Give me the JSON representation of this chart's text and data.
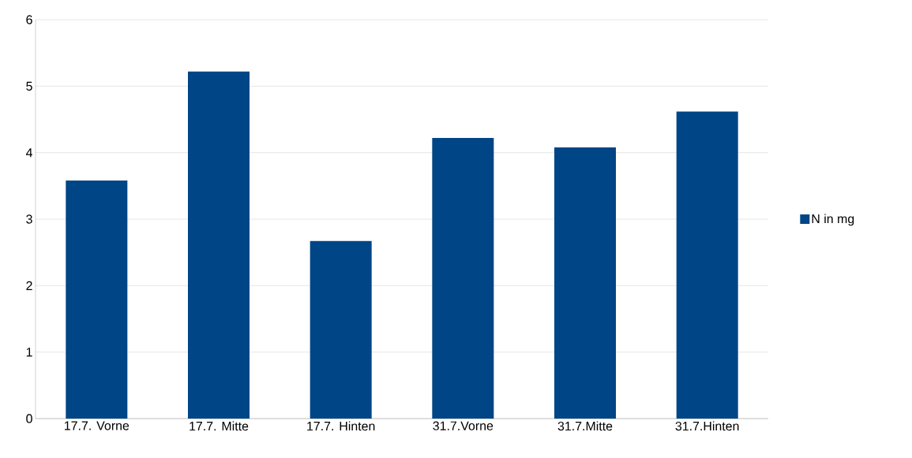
{
  "chart_data": {
    "type": "bar",
    "categories": [
      "17.7. Vorne",
      "17.7. Mitte",
      "17.7. Hinten",
      "31.7.Vorne",
      "31.7.Mitte",
      "31.7.Hinten"
    ],
    "series": [
      {
        "name": "N in mg",
        "color": "#004586",
        "values": [
          3.58,
          5.22,
          2.67,
          4.22,
          4.08,
          4.62
        ]
      }
    ],
    "ylim": [
      0,
      6
    ],
    "yticks": [
      0,
      1,
      2,
      3,
      4,
      5,
      6
    ],
    "grid": "y",
    "legend": "right"
  }
}
